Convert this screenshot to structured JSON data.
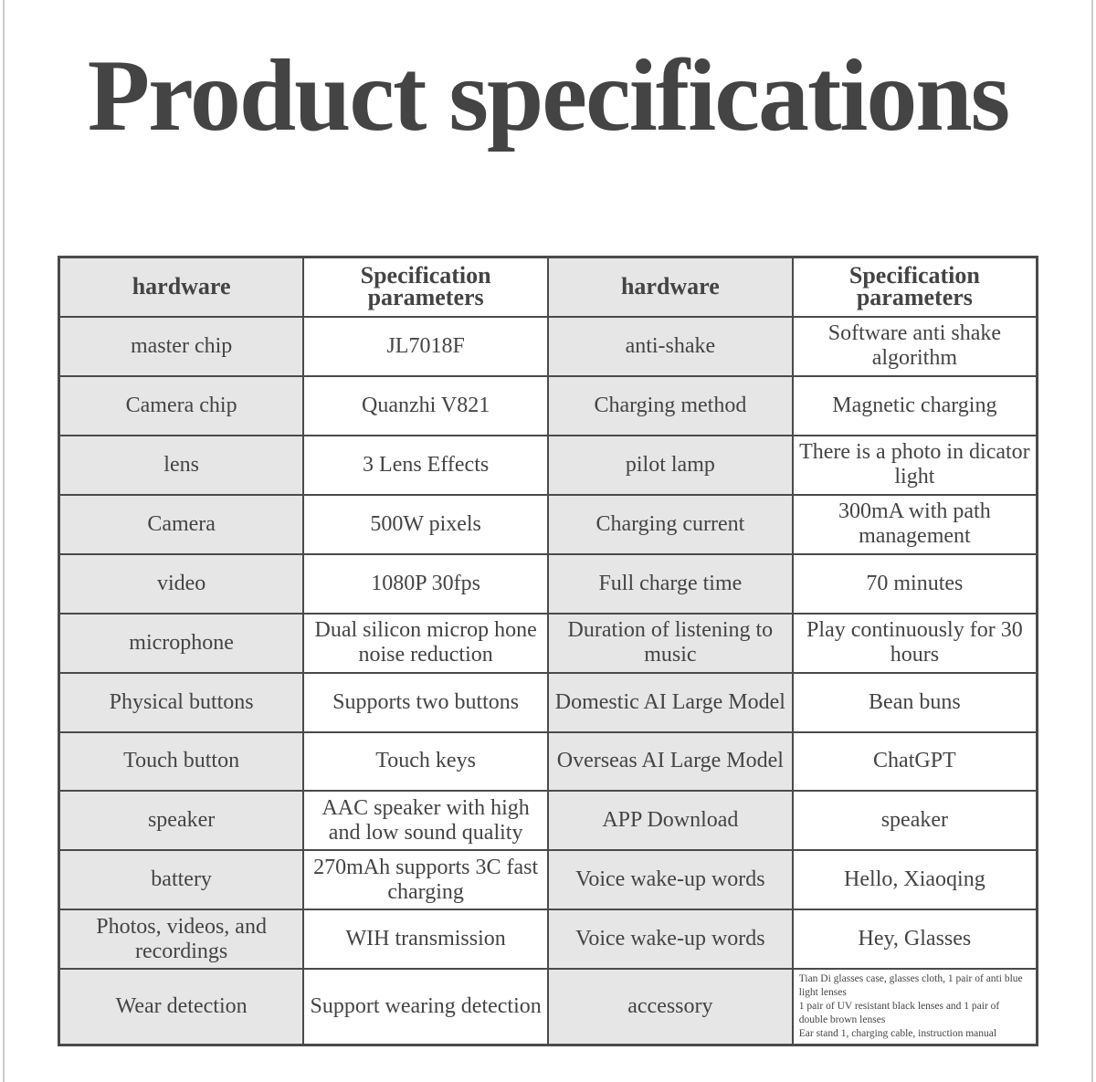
{
  "header": {
    "title": "Product specifications"
  },
  "table": {
    "header": [
      "hardware",
      "Specification parameters",
      "hardware",
      "Specification parameters"
    ],
    "rows": [
      [
        "master chip",
        "JL7018F",
        "anti-shake",
        "Software anti shake algorithm"
      ],
      [
        "Camera chip",
        "Quanzhi V821",
        "Charging method",
        "Magnetic charging"
      ],
      [
        "lens",
        "3 Lens Effects",
        "pilot lamp",
        "There is a photo in dicator light"
      ],
      [
        "Camera",
        "500W pixels",
        "Charging current",
        "300mA with path management"
      ],
      [
        "video",
        "1080P 30fps",
        "Full charge time",
        "70 minutes"
      ],
      [
        "microphone",
        "Dual silicon microp hone noise reduction",
        "Duration of listening to music",
        "Play continuously for 30 hours"
      ],
      [
        "Physical buttons",
        "Supports two buttons",
        "Domestic AI Large Model",
        "Bean buns"
      ],
      [
        "Touch button",
        "Touch keys",
        "Overseas AI Large Model",
        "ChatGPT"
      ],
      [
        "speaker",
        "AAC speaker with high and low sound quality",
        "APP Download",
        "speaker"
      ],
      [
        "battery",
        "270mAh supports 3C fast charging",
        "Voice wake-up words",
        "Hello, Xiaoqing"
      ],
      [
        "Photos, videos, and recordings",
        "WIH transmission",
        "Voice wake-up words",
        "Hey, Glasses"
      ],
      [
        "Wear detection",
        "Support wearing detection",
        "accessory",
        [
          "Tian Di glasses case, glasses cloth, 1 pair of anti blue light lenses",
          "1 pair of UV resistant black lenses and 1 pair of double brown lenses",
          "Ear stand 1, charging cable, instruction manual"
        ]
      ]
    ]
  }
}
